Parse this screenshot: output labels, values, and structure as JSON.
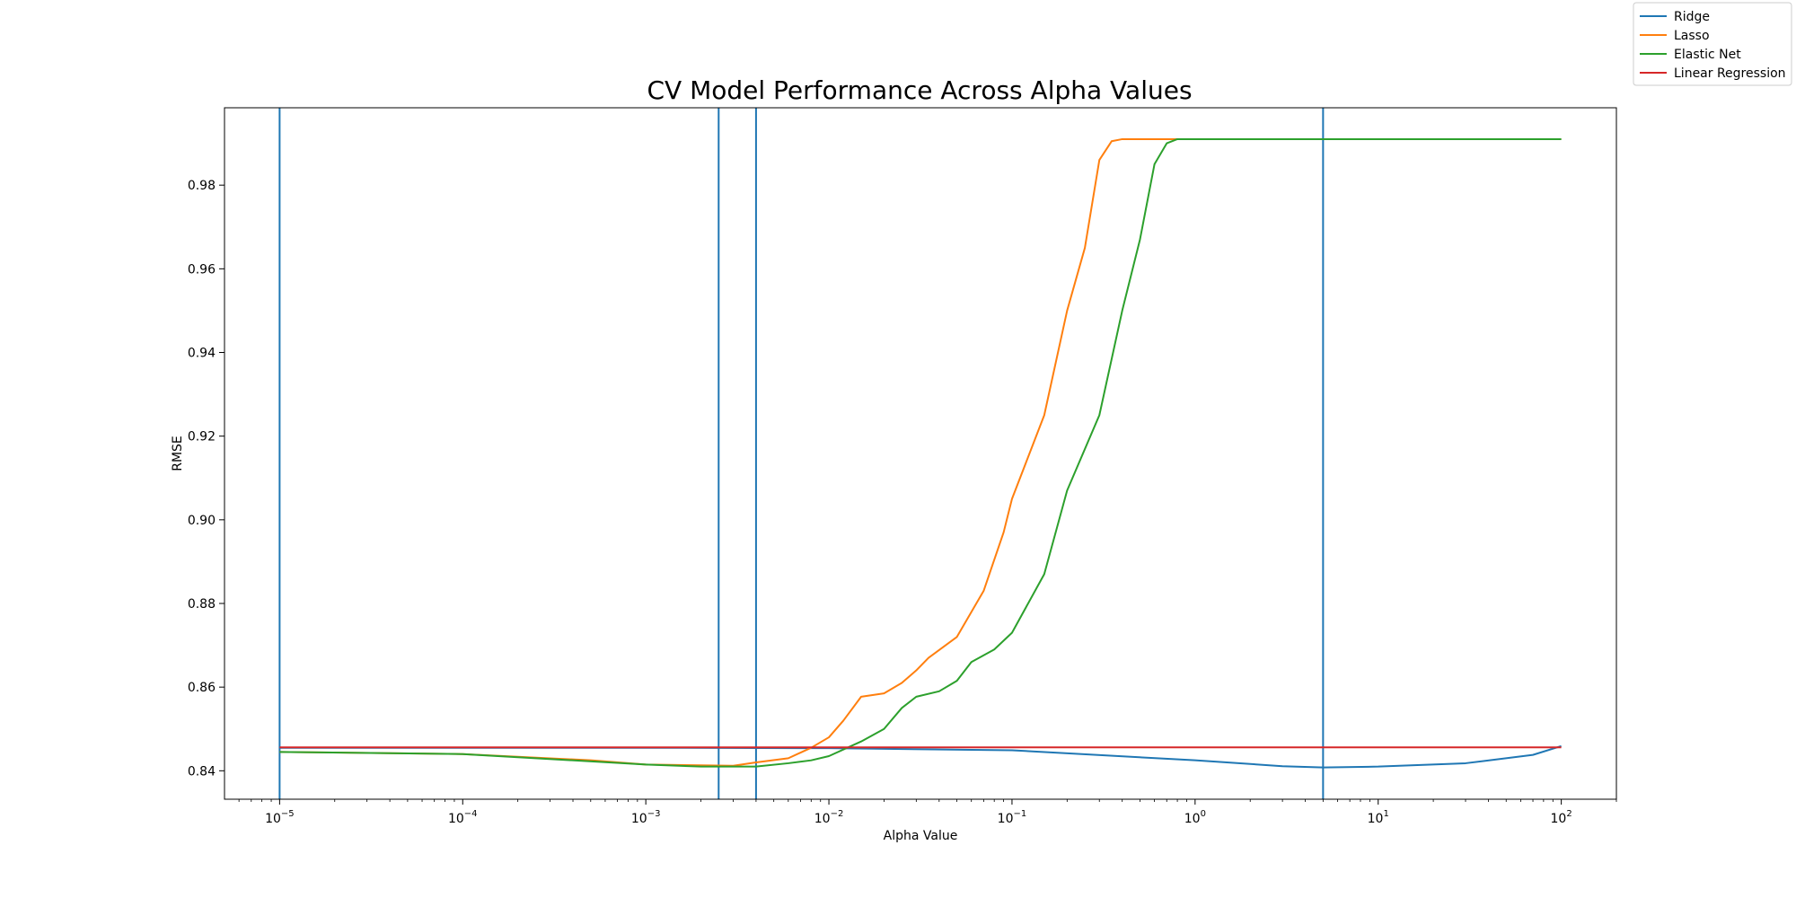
{
  "chart_data": {
    "type": "line",
    "title": "CV Model Performance Across Alpha Values",
    "xlabel": "Alpha Value",
    "ylabel": "RMSE",
    "xscale": "log",
    "xlim": [
      5e-06,
      200
    ],
    "ylim": [
      0.8332,
      0.9985
    ],
    "x_tick_labels": [
      "10−5",
      "10−4",
      "10−3",
      "10−2",
      "10−1",
      "100",
      "101",
      "102"
    ],
    "y_tick_labels": [
      "0.84",
      "0.86",
      "0.88",
      "0.90",
      "0.92",
      "0.94",
      "0.96",
      "0.98"
    ],
    "grid": false,
    "legend_position": "top-right",
    "colors": {
      "Ridge": "#1f77b4",
      "Lasso": "#ff7f0e",
      "Elastic Net": "#2ca02c",
      "Linear Regression": "#d62728"
    },
    "series": [
      {
        "name": "Ridge",
        "x": [
          1e-05,
          0.0001,
          0.001,
          0.01,
          0.1,
          1,
          3,
          5,
          10,
          30,
          70,
          100
        ],
        "y": [
          0.8455,
          0.8455,
          0.8455,
          0.8454,
          0.8449,
          0.8425,
          0.8411,
          0.8408,
          0.841,
          0.8418,
          0.8438,
          0.8459
        ]
      },
      {
        "name": "Lasso",
        "x": [
          1e-05,
          0.0001,
          0.0005,
          0.001,
          0.002,
          0.003,
          0.004,
          0.006,
          0.008,
          0.01,
          0.012,
          0.015,
          0.02,
          0.025,
          0.03,
          0.035,
          0.05,
          0.07,
          0.09,
          0.1,
          0.15,
          0.2,
          0.25,
          0.3,
          0.35,
          0.4,
          0.5,
          0.7,
          1,
          10,
          100
        ],
        "y": [
          0.8445,
          0.844,
          0.8425,
          0.8415,
          0.8413,
          0.8412,
          0.842,
          0.843,
          0.8455,
          0.848,
          0.852,
          0.8577,
          0.8585,
          0.861,
          0.864,
          0.867,
          0.872,
          0.883,
          0.897,
          0.905,
          0.925,
          0.95,
          0.965,
          0.986,
          0.9905,
          0.991,
          0.991,
          0.991,
          0.991,
          0.991,
          0.991
        ]
      },
      {
        "name": "Elastic Net",
        "x": [
          1e-05,
          0.0001,
          0.001,
          0.002,
          0.003,
          0.004,
          0.006,
          0.008,
          0.01,
          0.015,
          0.02,
          0.025,
          0.03,
          0.04,
          0.05,
          0.06,
          0.08,
          0.1,
          0.15,
          0.2,
          0.3,
          0.4,
          0.5,
          0.6,
          0.7,
          0.8,
          1,
          10,
          100
        ],
        "y": [
          0.8445,
          0.844,
          0.8415,
          0.841,
          0.841,
          0.841,
          0.8418,
          0.8425,
          0.8435,
          0.847,
          0.85,
          0.855,
          0.8577,
          0.859,
          0.8615,
          0.866,
          0.869,
          0.873,
          0.887,
          0.907,
          0.925,
          0.95,
          0.967,
          0.985,
          0.99,
          0.991,
          0.991,
          0.991,
          0.991
        ]
      },
      {
        "name": "Linear Regression",
        "x": [
          1e-05,
          100
        ],
        "y": [
          0.8456,
          0.8456
        ]
      }
    ],
    "vlines": [
      1e-05,
      0.0025,
      0.004,
      5
    ]
  }
}
